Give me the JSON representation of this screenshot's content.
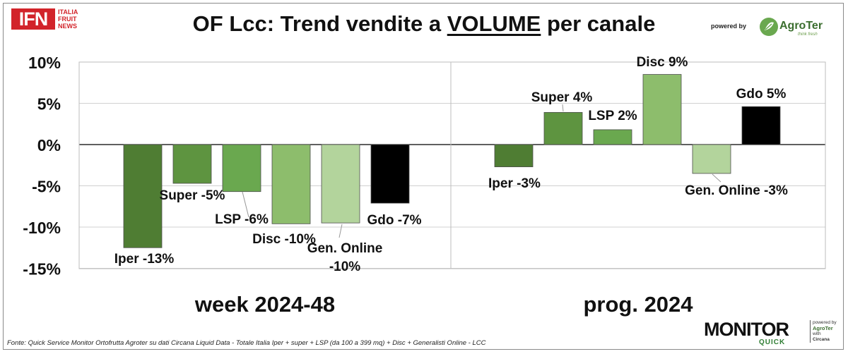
{
  "header": {
    "title_pre": "OF Lcc: Trend vendite a ",
    "title_emph": "VOLUME",
    "title_post": " per canale",
    "powered_by": "powered by"
  },
  "logos": {
    "ifn_mark": "IFN",
    "ifn_words": [
      "ITALIA",
      "FRUIT",
      "NEWS"
    ],
    "agroter_name": "AgroTer",
    "agroter_tagline": "think fresh",
    "monitor_word": "MONITOR",
    "monitor_quick": "QUICK",
    "monitor_side_powered": "powered by",
    "monitor_side_agroter": "AgroTer",
    "monitor_side_with": "with",
    "monitor_side_circana": "Circana"
  },
  "footer": "Fonte: Quick Service Monitor Ortofrutta Agroter su dati Circana Liquid Data - Totale Italia Iper + super + LSP (da 100 a 399 mq) + Disc + Generalisti Online - LCC",
  "chart_data": {
    "type": "bar",
    "title": "OF Lcc: Trend vendite a VOLUME per canale",
    "ylim": [
      -15,
      10
    ],
    "yticks": [
      10,
      5,
      0,
      -5,
      -10,
      -15
    ],
    "ytick_labels": [
      "10%",
      "5%",
      "0%",
      "-5%",
      "-10%",
      "-15%"
    ],
    "grid": true,
    "groups": [
      {
        "label": "week 2024-48",
        "bars": [
          {
            "category": "Iper",
            "value": -12.5,
            "label": "Iper -13%",
            "color": "#4f7d33"
          },
          {
            "category": "Super",
            "value": -4.7,
            "label": "Super -5%",
            "color": "#5e9440"
          },
          {
            "category": "LSP",
            "value": -5.7,
            "label": "LSP -6%",
            "color": "#6aa84f"
          },
          {
            "category": "Disc",
            "value": -9.6,
            "label": "Disc -10%",
            "color": "#8dbd6c"
          },
          {
            "category": "Gen. Online",
            "value": -9.5,
            "label": [
              "Gen. Online",
              "-10%"
            ],
            "color": "#b3d49c"
          },
          {
            "category": "Gdo",
            "value": -7.1,
            "label": "Gdo -7%",
            "color": "#000000"
          }
        ]
      },
      {
        "label": "prog. 2024",
        "bars": [
          {
            "category": "Iper",
            "value": -2.7,
            "label": "Iper -3%",
            "color": "#4f7d33"
          },
          {
            "category": "Super",
            "value": 3.9,
            "label": "Super 4%",
            "color": "#5e9440"
          },
          {
            "category": "LSP",
            "value": 1.8,
            "label": "LSP 2%",
            "color": "#6aa84f"
          },
          {
            "category": "Disc",
            "value": 8.5,
            "label": "Disc 9%",
            "color": "#8dbd6c"
          },
          {
            "category": "Gen. Online",
            "value": -3.5,
            "label": "Gen. Online -3%",
            "color": "#b3d49c"
          },
          {
            "category": "Gdo",
            "value": 4.6,
            "label": "Gdo 5%",
            "color": "#000000"
          }
        ]
      }
    ]
  }
}
